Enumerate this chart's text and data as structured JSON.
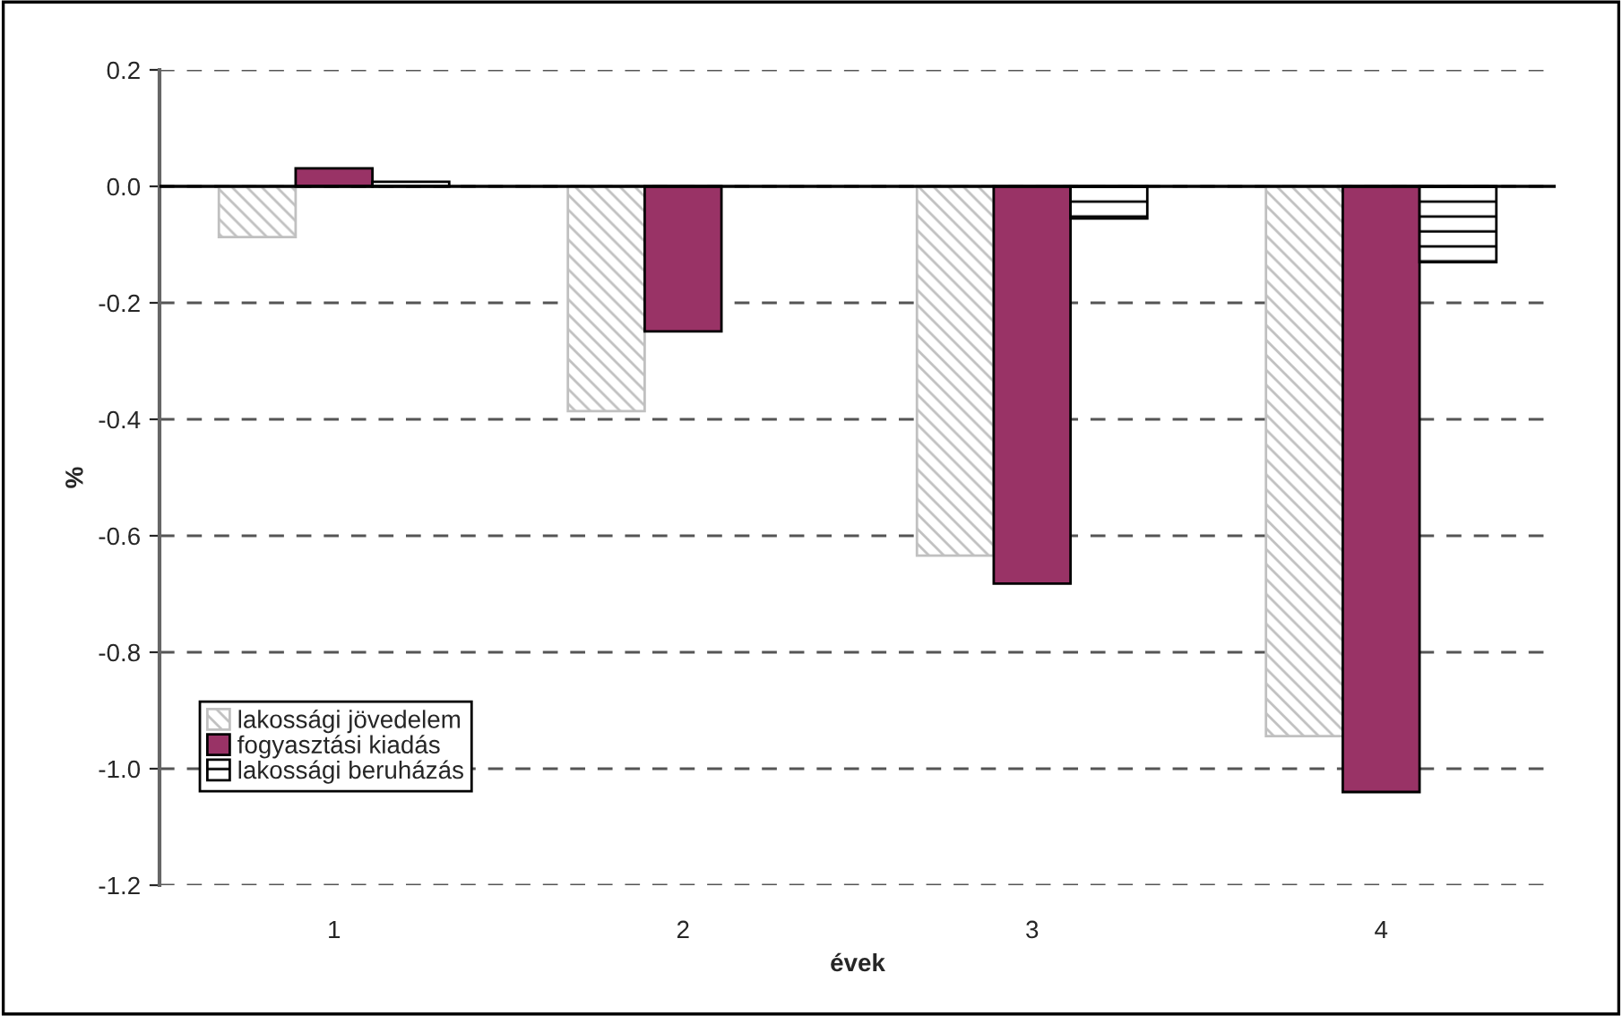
{
  "chart_data": {
    "type": "bar",
    "xlabel": "évek",
    "ylabel": "%",
    "categories": [
      "1",
      "2",
      "3",
      "4"
    ],
    "series": [
      {
        "name": "lakossági jövedelem",
        "color": "#c0c0c0",
        "values": [
          -0.087,
          -0.386,
          -0.634,
          -0.944
        ]
      },
      {
        "name": "fogyasztási kiadás",
        "color": "#993366",
        "values": [
          0.031,
          -0.249,
          -0.682,
          -1.04
        ]
      },
      {
        "name": "lakossági beruházás",
        "color": "#000000",
        "values": [
          0.008,
          null,
          -0.055,
          -0.13
        ]
      }
    ],
    "ylim": [
      -1.2,
      0.2
    ],
    "yticks": [
      {
        "value": -1.2,
        "label": "-1.2"
      },
      {
        "value": -1.0,
        "label": "-1.0"
      },
      {
        "value": -0.8,
        "label": "-0.8"
      },
      {
        "value": -0.6,
        "label": "-0.6"
      },
      {
        "value": -0.4,
        "label": "-0.4"
      },
      {
        "value": -0.2,
        "label": "-0.2"
      },
      {
        "value": 0.0,
        "label": "0.0"
      },
      {
        "value": 0.2,
        "label": "0.2"
      }
    ],
    "grid": "y",
    "legend": "bottom left",
    "ref_lines": [
      {
        "axis": "y",
        "value": 0,
        "color": "#000000",
        "line_style": "solid"
      }
    ]
  }
}
